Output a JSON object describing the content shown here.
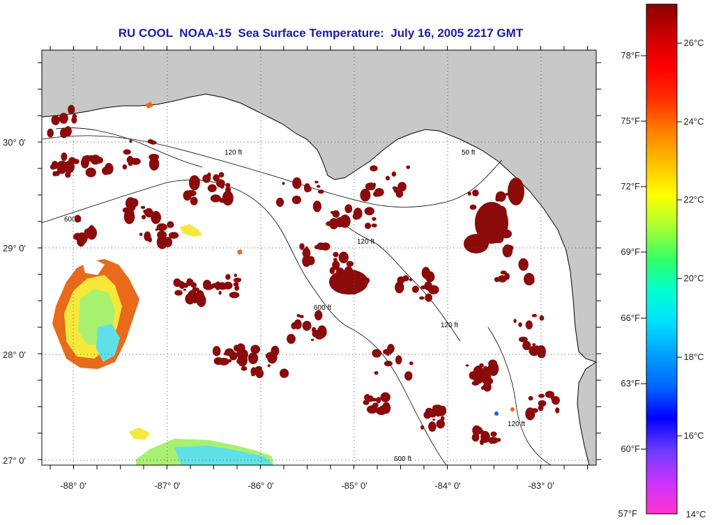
{
  "title": "RU COOL  NOAA-15  Sea Surface Temperature:  July 16, 2005 2217 GMT",
  "map": {
    "land_color": "#c8c8c8",
    "water_color": "#ffffff",
    "longitude_labels": [
      "-88° 0'",
      "-87° 0'",
      "-86° 0'",
      "-85° 0'",
      "-84° 0'",
      "-83° 0'"
    ],
    "latitude_labels": [
      "30° 0'",
      "29° 0'",
      "28° 0'",
      "27° 0'"
    ],
    "contour_labels": [
      "120 ft",
      "50 ft",
      "600 ft",
      "120 ft",
      "600 ft",
      "120 ft",
      "120 ft",
      "600 ft"
    ]
  },
  "colorbar": {
    "fahrenheit_labels": [
      "78°F",
      "75°F",
      "72°F",
      "69°F",
      "66°F",
      "63°F",
      "60°F",
      "57°F"
    ],
    "celsius_labels": [
      "26°C",
      "24°C",
      "22°C",
      "20°C",
      "18°C",
      "16°C",
      "14°C"
    ],
    "colors": [
      "#ff33cc",
      "#cc33ff",
      "#6a3cff",
      "#0000ff",
      "#0066ff",
      "#00a0ff",
      "#00e0ff",
      "#00ffd0",
      "#33ff66",
      "#aaff33",
      "#ffff00",
      "#ffc000",
      "#ff8000",
      "#ff3000",
      "#ff0000",
      "#cc0000",
      "#8b0000"
    ]
  },
  "sst_colors": {
    "warm": "#8b0a0a",
    "orange": "#e86a1a",
    "yellow": "#f5e83a",
    "green": "#a8f070",
    "cyan": "#60e0e8",
    "blue": "#50b0f0"
  }
}
